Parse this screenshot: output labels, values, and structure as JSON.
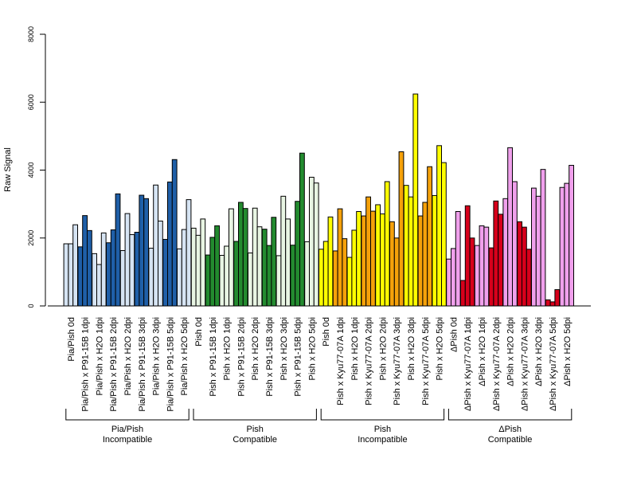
{
  "chart_data": {
    "type": "bar",
    "ylabel": "Raw Signal",
    "xlabel": "",
    "ylim": [
      0,
      8000
    ],
    "yticks": [
      0,
      2000,
      4000,
      6000,
      8000
    ],
    "grid": false,
    "colors": {
      "light_blue": "#d6e4f3",
      "dark_blue": "#1f5fa8",
      "light_green": "#e8f5e3",
      "dark_green": "#238b2f",
      "yellow": "#ffff00",
      "orange": "#f5a10a",
      "pink": "#f0a0ec",
      "red": "#d7001b"
    },
    "categories": [
      "Pia/Pish 0d",
      "Pia/Pish x P91-15B 1dpi",
      "Pia/Pish x H2O 1dpi",
      "Pia/Pish x P91-15B 2dpi",
      "Pia/Pish x H2O 2dpi",
      "Pia/Pish x P91-15B 3dpi",
      "Pia/Pish x H2O 3dpi",
      "Pia/Pish x P91-15B 5dpi",
      "Pia/Pish x H2O 5dpi",
      "Pish 0d",
      "Pish x P91-15B 1dpi",
      "Pish x H2O 1dpi",
      "Pish x P91-15B 2dpi",
      "Pish x H2O 2dpi",
      "Pish x P91-15B 3dpi",
      "Pish x H2O 3dpi",
      "Pish x P91-15B 5dpi",
      "Pish x H2O 5dpi",
      "Pish 0d",
      "Pish x Kyu77-07A 1dpi",
      "Pish x H2O 1dpi",
      "Pish x Kyu77-07A 2dpi",
      "Pish x H2O 2dpi",
      "Pish x Kyu77-07A 3dpi",
      "Pish x H2O 3dpi",
      "Pish x Kyu77-07A 5dpi",
      "Pish x H2O 5dpi",
      "ΔPish 0d",
      "ΔPish x Kyu77-07A 1dpi",
      "ΔPish x H2O 1dpi",
      "ΔPish x Kyu77-07A 2dpi",
      "ΔPish x H2O 2dpi",
      "ΔPish x Kyu77-07A 3dpi",
      "ΔPish x H2O 3dpi",
      "ΔPish x Kyu77-07A 5dpi",
      "ΔPish x H2O 5dpi"
    ],
    "bar_colors": [
      "light_blue",
      "dark_blue",
      "light_blue",
      "dark_blue",
      "light_blue",
      "dark_blue",
      "light_blue",
      "dark_blue",
      "light_blue",
      "light_green",
      "dark_green",
      "light_green",
      "dark_green",
      "light_green",
      "dark_green",
      "light_green",
      "dark_green",
      "light_green",
      "yellow",
      "orange",
      "yellow",
      "orange",
      "yellow",
      "orange",
      "yellow",
      "orange",
      "yellow",
      "pink",
      "red",
      "pink",
      "red",
      "pink",
      "red",
      "pink",
      "red",
      "pink"
    ],
    "values": [
      [
        1830,
        1830,
        2390
      ],
      [
        1740,
        2660,
        2220
      ],
      [
        1540,
        1220,
        2150
      ],
      [
        1860,
        2240,
        3300
      ],
      [
        1630,
        2720,
        2100
      ],
      [
        2170,
        3260,
        3160
      ],
      [
        1700,
        3560,
        2500
      ],
      [
        1960,
        3650,
        4310
      ],
      [
        1680,
        2250,
        3130
      ],
      [
        2290,
        2080,
        2560
      ],
      [
        1500,
        2020,
        2360
      ],
      [
        1490,
        1760,
        2860
      ],
      [
        1900,
        3050,
        2870
      ],
      [
        1560,
        2880,
        2330
      ],
      [
        2260,
        1780,
        2610
      ],
      [
        1480,
        3230,
        2560
      ],
      [
        1790,
        3080,
        4500
      ],
      [
        1890,
        3790,
        3620
      ],
      [
        1670,
        1900,
        2620
      ],
      [
        1620,
        2860,
        1980
      ],
      [
        1430,
        2230,
        2780
      ],
      [
        2650,
        3210,
        2790
      ],
      [
        2980,
        2710,
        3660
      ],
      [
        2480,
        2000,
        4540
      ],
      [
        3550,
        3210,
        6240
      ],
      [
        2650,
        3050,
        4100
      ],
      [
        3250,
        4720,
        4220
      ],
      [
        1380,
        1690,
        2780
      ],
      [
        750,
        2950,
        2000
      ],
      [
        1780,
        2360,
        2320
      ],
      [
        1710,
        3090,
        2700
      ],
      [
        3160,
        4660,
        3660
      ],
      [
        2480,
        2320,
        1670
      ],
      [
        3470,
        3230,
        4020
      ],
      [
        180,
        120,
        480
      ],
      [
        3490,
        3610,
        4140
      ]
    ],
    "groups": [
      {
        "line1": "Pia/Pish",
        "line2": "Incompatible"
      },
      {
        "line1": "Pish",
        "line2": "Compatible"
      },
      {
        "line1": "Pish",
        "line2": "Incompatible"
      },
      {
        "line1": "ΔPish",
        "line2": "Compatible"
      }
    ]
  }
}
